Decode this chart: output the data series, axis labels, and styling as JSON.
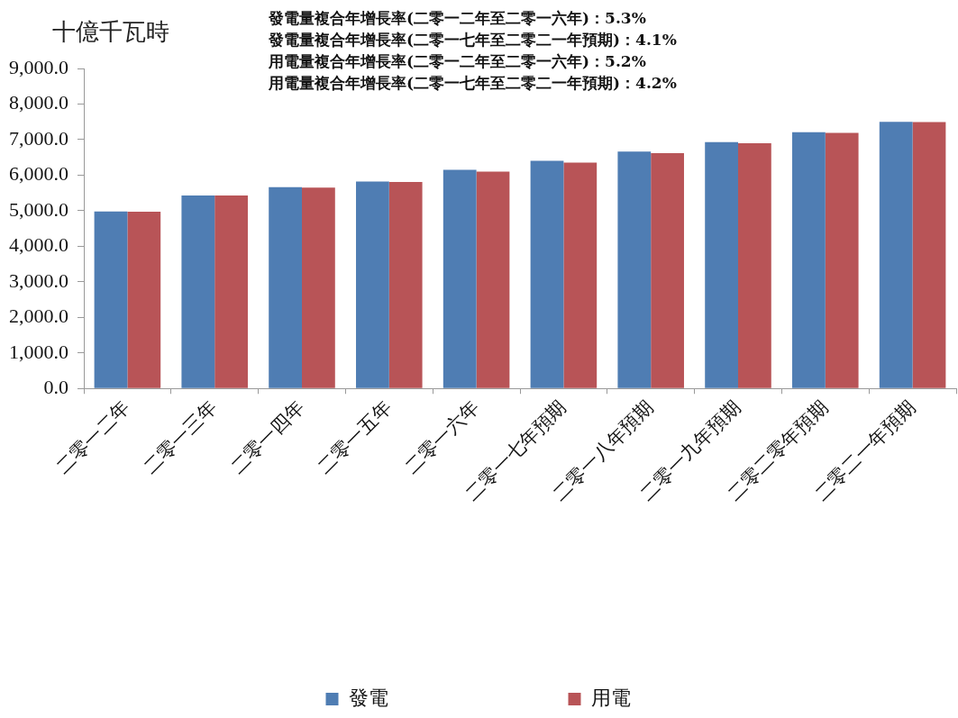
{
  "chart_data": {
    "type": "bar",
    "ylabel": "十億千瓦時",
    "annotations": [
      "發電量複合年增長率(二零一二年至二零一六年)：5.3%",
      "發電量複合年增長率(二零一七年至二零二一年預期)：4.1%",
      "用電量複合年增長率(二零一二年至二零一六年)：5.2%",
      "用電量複合年增長率(二零一七年至二零二一年預期)：4.2%"
    ],
    "categories": [
      "二零一二年",
      "二零一三年",
      "二零一四年",
      "二零一五年",
      "二零一六年",
      "二零一七年預期",
      "二零一八年預期",
      "二零一九年預期",
      "二零二零年預期",
      "二零二一年預期"
    ],
    "series": [
      {
        "name": "發電",
        "color": "#4f7db3",
        "values": [
          4980,
          5430,
          5660,
          5820,
          6150,
          6400,
          6660,
          6930,
          7210,
          7500
        ]
      },
      {
        "name": "用電",
        "color": "#b85457",
        "values": [
          4970,
          5430,
          5650,
          5810,
          6100,
          6350,
          6620,
          6900,
          7190,
          7490
        ]
      }
    ],
    "ylim": [
      0,
      9000
    ],
    "yticks": [
      {
        "value": 0,
        "label": "0.0"
      },
      {
        "value": 1000,
        "label": "1,000.0"
      },
      {
        "value": 2000,
        "label": "2,000.0"
      },
      {
        "value": 3000,
        "label": "3,000.0"
      },
      {
        "value": 4000,
        "label": "4,000.0"
      },
      {
        "value": 5000,
        "label": "5,000.0"
      },
      {
        "value": 6000,
        "label": "6,000.0"
      },
      {
        "value": 7000,
        "label": "7,000.0"
      },
      {
        "value": 8000,
        "label": "8,000.0"
      },
      {
        "value": 9000,
        "label": "9,000.0"
      }
    ],
    "legend": "bottom"
  }
}
